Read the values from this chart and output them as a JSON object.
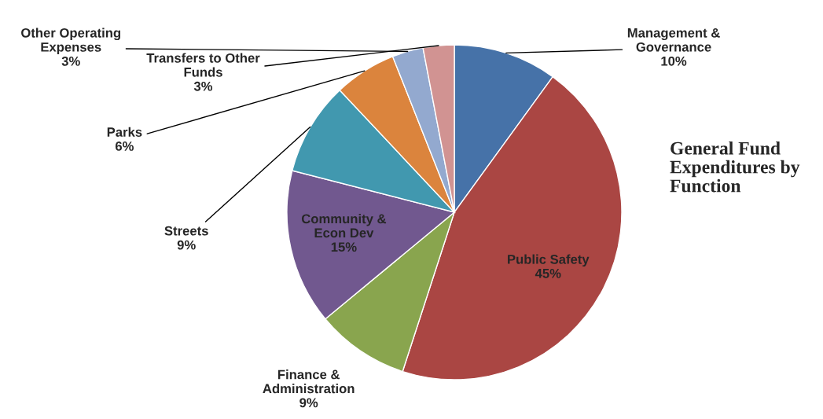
{
  "chart_data": {
    "type": "pie",
    "title": "General Fund Expenditures by Function",
    "categories": [
      "Management & Governance",
      "Public Safety",
      "Finance & Administration",
      "Community & Econ Dev",
      "Streets",
      "Parks",
      "Other Operating Expenses",
      "Transfers to Other Funds"
    ],
    "values": [
      10,
      45,
      9,
      15,
      9,
      6,
      3,
      3
    ],
    "value_labels": [
      "10%",
      "45%",
      "9%",
      "15%",
      "9%",
      "6%",
      "3%",
      "3%"
    ],
    "colors": [
      "#4672a8",
      "#aa4643",
      "#89a54e",
      "#71588f",
      "#4198af",
      "#db843d",
      "#93a9cf",
      "#d19392"
    ],
    "legend": false
  }
}
